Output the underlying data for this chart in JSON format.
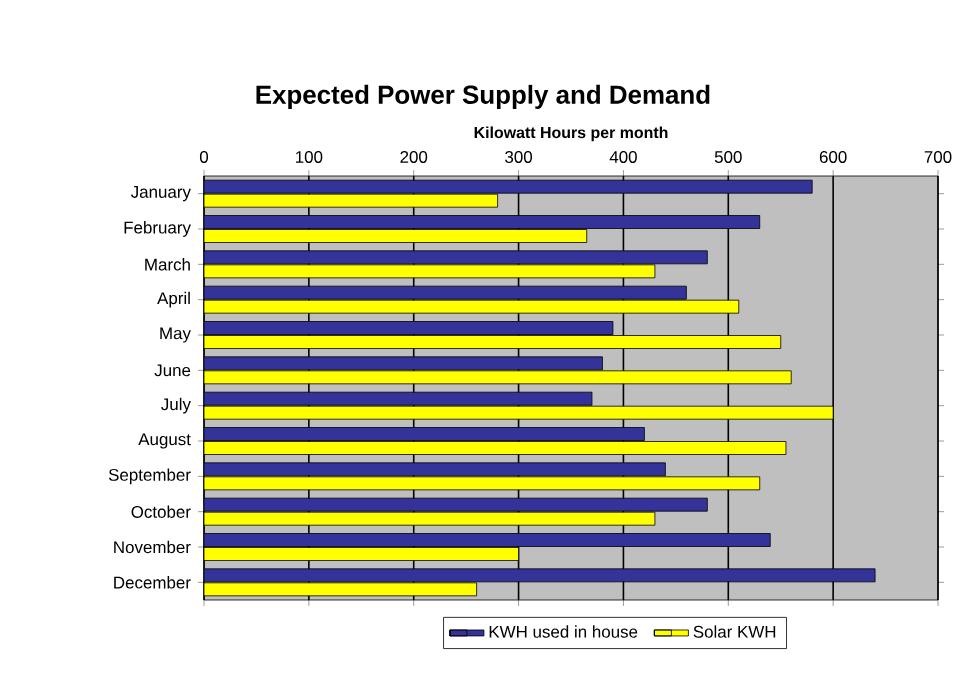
{
  "chart_data": {
    "type": "bar",
    "orientation": "horizontal",
    "title": "Expected Power Supply and Demand",
    "xlabel": "Kilowatt Hours per month",
    "categories": [
      "January",
      "February",
      "March",
      "April",
      "May",
      "June",
      "July",
      "August",
      "September",
      "October",
      "November",
      "December"
    ],
    "series": [
      {
        "name": "KWH used in house",
        "color": "#333399",
        "values": [
          580,
          530,
          480,
          460,
          390,
          380,
          370,
          420,
          440,
          480,
          540,
          640
        ]
      },
      {
        "name": "Solar KWH",
        "color": "#ffff00",
        "values": [
          280,
          365,
          430,
          510,
          550,
          560,
          600,
          555,
          530,
          430,
          300,
          260
        ]
      }
    ],
    "xlim": [
      0,
      700
    ],
    "xticks": [
      0,
      100,
      200,
      300,
      400,
      500,
      600,
      700
    ],
    "grid": "x",
    "legend": "bottom"
  }
}
